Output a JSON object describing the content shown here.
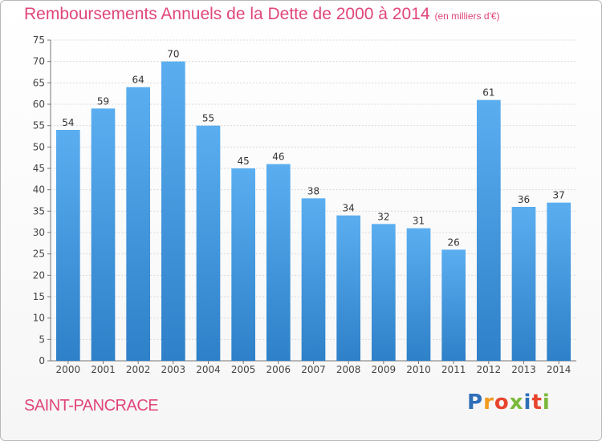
{
  "chart_data": {
    "type": "bar",
    "title": "Remboursements Annuels de la Dette de 2000 à 2014",
    "subtitle": "(en milliers d'€)",
    "categories": [
      "2000",
      "2001",
      "2002",
      "2003",
      "2004",
      "2005",
      "2006",
      "2007",
      "2008",
      "2009",
      "2010",
      "2011",
      "2012",
      "2013",
      "2014"
    ],
    "values": [
      54,
      59,
      64,
      70,
      55,
      45,
      46,
      38,
      34,
      32,
      31,
      26,
      61,
      36,
      37
    ],
    "ylim": [
      0,
      75
    ],
    "yticks": [
      0,
      5,
      10,
      15,
      20,
      25,
      30,
      35,
      40,
      45,
      50,
      55,
      60,
      65,
      70,
      75
    ],
    "xlabel": "",
    "ylabel": "",
    "grid": true,
    "bar_color": "#4a9ee0"
  },
  "footer": {
    "commune": "SAINT-PANCRACE",
    "logo_letters": [
      "P",
      "r",
      "o",
      "x",
      "i",
      "t",
      "i"
    ],
    "logo_colors": [
      "#2f6fb8",
      "#f39a1e",
      "#e7442e",
      "#7bb93a",
      "#2f6fb8",
      "#e7442e",
      "#7bb93a"
    ]
  }
}
